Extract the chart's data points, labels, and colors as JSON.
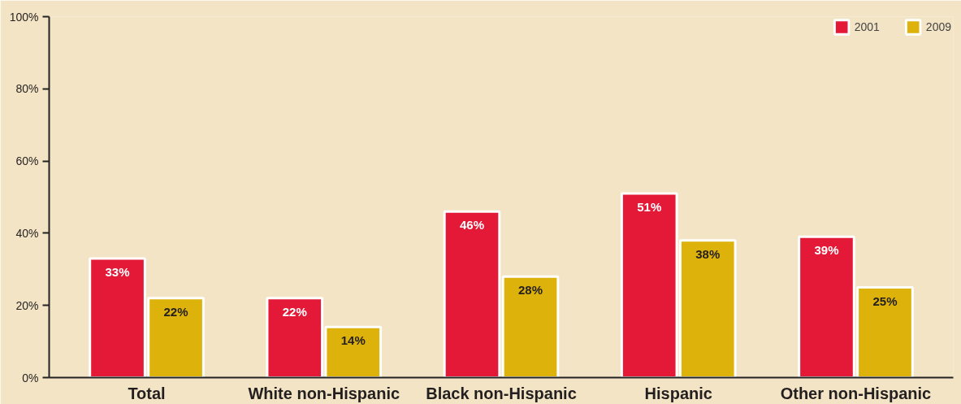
{
  "chart_data": {
    "type": "bar",
    "categories": [
      "Total",
      "White non-Hispanic",
      "Black non-Hispanic",
      "Hispanic",
      "Other non-Hispanic"
    ],
    "series": [
      {
        "name": "2001",
        "color": "#e31937",
        "values": [
          33,
          22,
          46,
          51,
          39
        ],
        "value_labels": [
          "33%",
          "22%",
          "46%",
          "51%",
          "39%"
        ]
      },
      {
        "name": "2009",
        "color": "#ddb20a",
        "values": [
          22,
          14,
          28,
          38,
          25
        ],
        "value_labels": [
          "22%",
          "14%",
          "28%",
          "38%",
          "25%"
        ]
      }
    ],
    "ylim": [
      0,
      100
    ],
    "yticks": [
      {
        "value": 0,
        "label": "0%"
      },
      {
        "value": 20,
        "label": "20%"
      },
      {
        "value": 40,
        "label": "40%"
      },
      {
        "value": 60,
        "label": "60%"
      },
      {
        "value": 80,
        "label": "80%"
      },
      {
        "value": 100,
        "label": "100%"
      }
    ],
    "grid": false,
    "legend": "top right"
  }
}
